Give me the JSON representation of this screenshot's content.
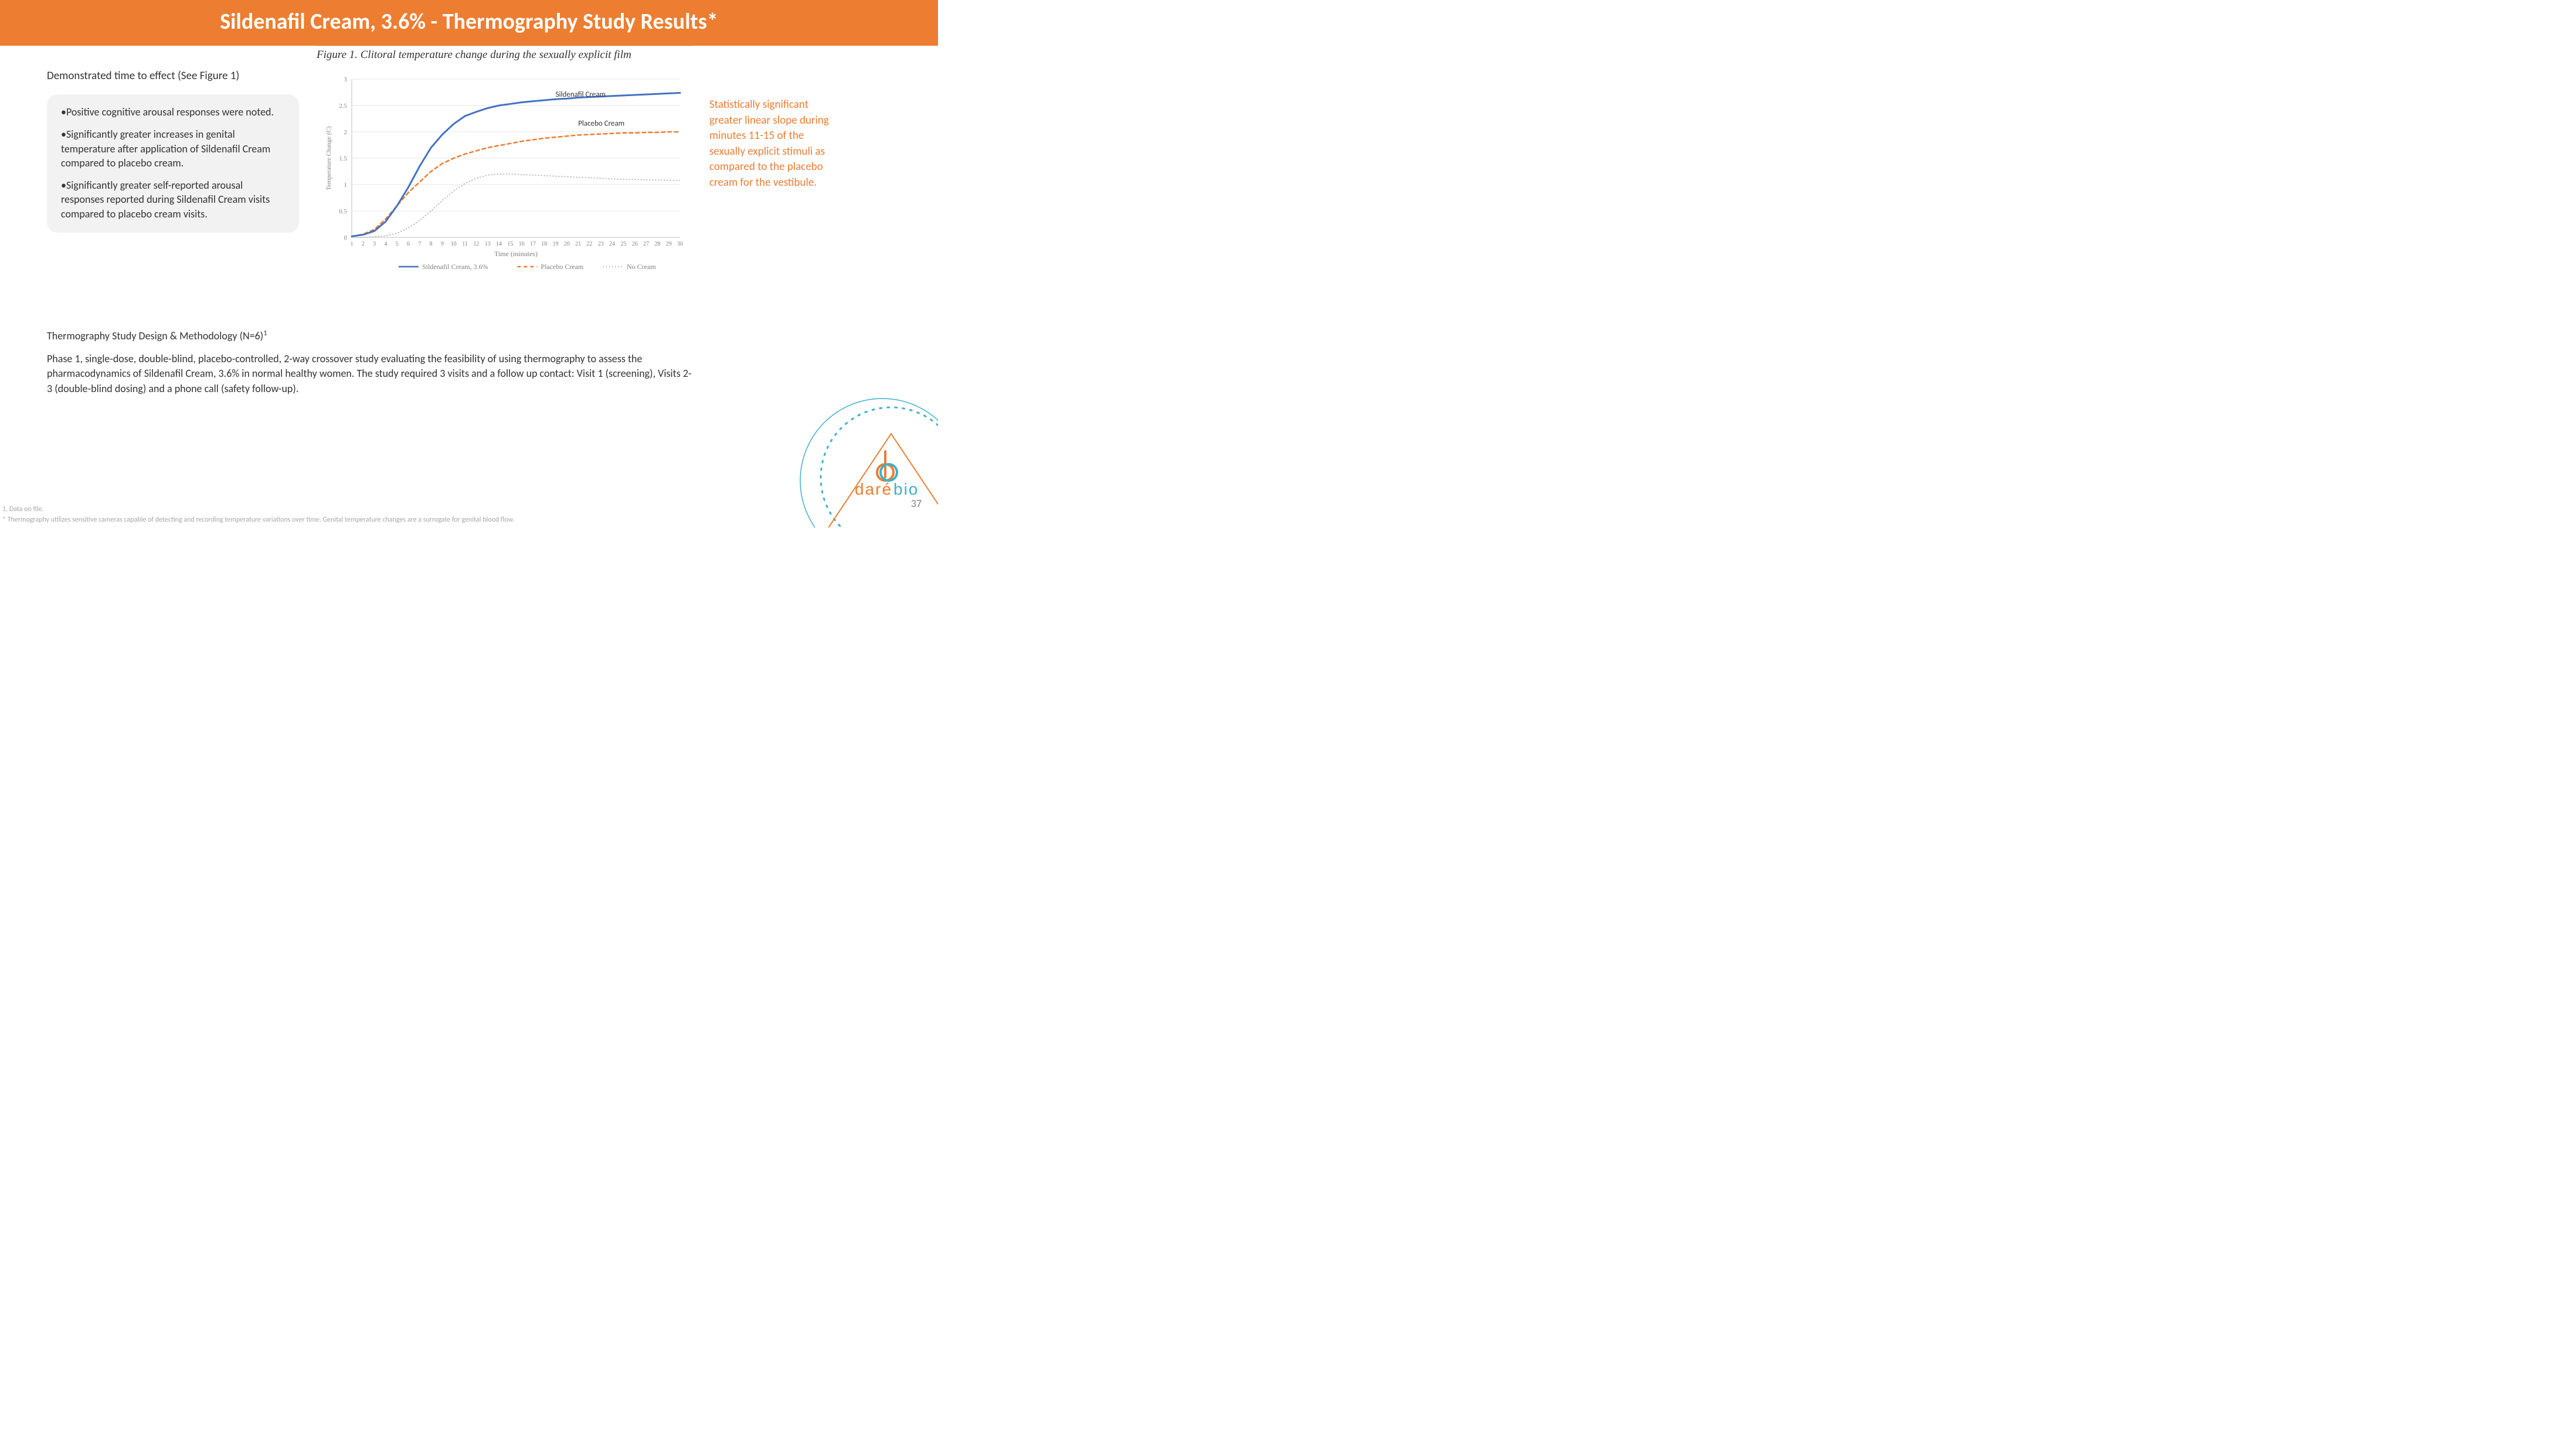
{
  "header": {
    "title": "Sildenafil Cream, 3.6% - Thermography Study Results*"
  },
  "demo_line": "Demonstrated time to effect (See Figure 1)",
  "bullets": {
    "b1": "•Positive cognitive arousal responses were noted.",
    "b2": "•Significantly greater increases in genital temperature after application of Sildenafil Cream compared to placebo cream.",
    "b3": "•Significantly greater self-reported arousal responses reported during Sildenafil Cream visits compared to placebo cream visits."
  },
  "figure": {
    "title": "Figure 1. Clitoral temperature change during the sexually explicit film",
    "ylabel": "Temperature Change (C)",
    "xlabel": "Time (minutes)",
    "ylim": [
      0,
      3
    ],
    "ytick_step": 0.5,
    "xlim": [
      1,
      30
    ],
    "x_ticks": [
      1,
      2,
      3,
      4,
      5,
      6,
      7,
      8,
      9,
      10,
      11,
      12,
      13,
      14,
      15,
      16,
      17,
      18,
      19,
      20,
      21,
      22,
      23,
      24,
      25,
      26,
      27,
      28,
      29,
      30
    ],
    "grid_color": "#e6e6e6",
    "background": "#ffffff",
    "annotations": {
      "sildenafil_label": "Sildenafil Cream",
      "placebo_label": "Placebo  Cream"
    },
    "legend": {
      "a": "Sildenafil Cream, 3.6%",
      "b": "Placebo Cream",
      "c": "No Cream"
    },
    "series": {
      "sildenafil": {
        "color": "#4472c4",
        "width": 3,
        "dash": "none",
        "data": [
          0.02,
          0.05,
          0.12,
          0.3,
          0.6,
          0.95,
          1.35,
          1.7,
          1.95,
          2.15,
          2.3,
          2.38,
          2.45,
          2.5,
          2.53,
          2.56,
          2.58,
          2.6,
          2.62,
          2.63,
          2.65,
          2.66,
          2.67,
          2.68,
          2.69,
          2.7,
          2.71,
          2.72,
          2.73,
          2.74
        ]
      },
      "placebo": {
        "color": "#ed7d31",
        "width": 2.5,
        "dash": "6,5",
        "data": [
          0.02,
          0.06,
          0.15,
          0.35,
          0.6,
          0.85,
          1.05,
          1.25,
          1.4,
          1.5,
          1.58,
          1.64,
          1.7,
          1.74,
          1.78,
          1.82,
          1.85,
          1.88,
          1.9,
          1.92,
          1.94,
          1.95,
          1.96,
          1.97,
          1.98,
          1.98,
          1.99,
          1.99,
          2.0,
          2.0
        ]
      },
      "nocream": {
        "color": "#a6a6a6",
        "width": 1.5,
        "dash": "1,4",
        "data": [
          0.0,
          0.0,
          0.01,
          0.03,
          0.08,
          0.18,
          0.32,
          0.5,
          0.7,
          0.88,
          1.02,
          1.12,
          1.18,
          1.2,
          1.2,
          1.19,
          1.18,
          1.17,
          1.16,
          1.15,
          1.14,
          1.13,
          1.12,
          1.11,
          1.1,
          1.1,
          1.09,
          1.09,
          1.08,
          1.08
        ]
      }
    }
  },
  "stat_note": "Statistically significant greater linear slope during minutes 11-15 of the sexually explicit stimuli as compared to the placebo cream for the vestibule.",
  "methodology": {
    "title": "Thermography Study Design & Methodology (N=6)",
    "title_sup": "1",
    "body": "Phase 1, single-dose, double-blind,  placebo-controlled, 2-way crossover study evaluating the feasibility of using thermography to assess the pharmacodynamics of Sildenafil Cream, 3.6% in normal healthy women. The study required 3 visits and a follow up contact: Visit 1 (screening),  Visits 2-3 (double-blind dosing) and a phone call (safety follow-up)."
  },
  "footnotes": {
    "f1": "1. Data on file.",
    "f2": "* Thermography utilizes sensitive cameras capable of detecting and recording temperature variations over time. Genital temperature changes are a surrogate for genital blood flow."
  },
  "page_number": "37",
  "logo": {
    "brand_a": "daré",
    "brand_b": "bio",
    "color_a": "#ed7d31",
    "color_b": "#3eb1c8"
  }
}
